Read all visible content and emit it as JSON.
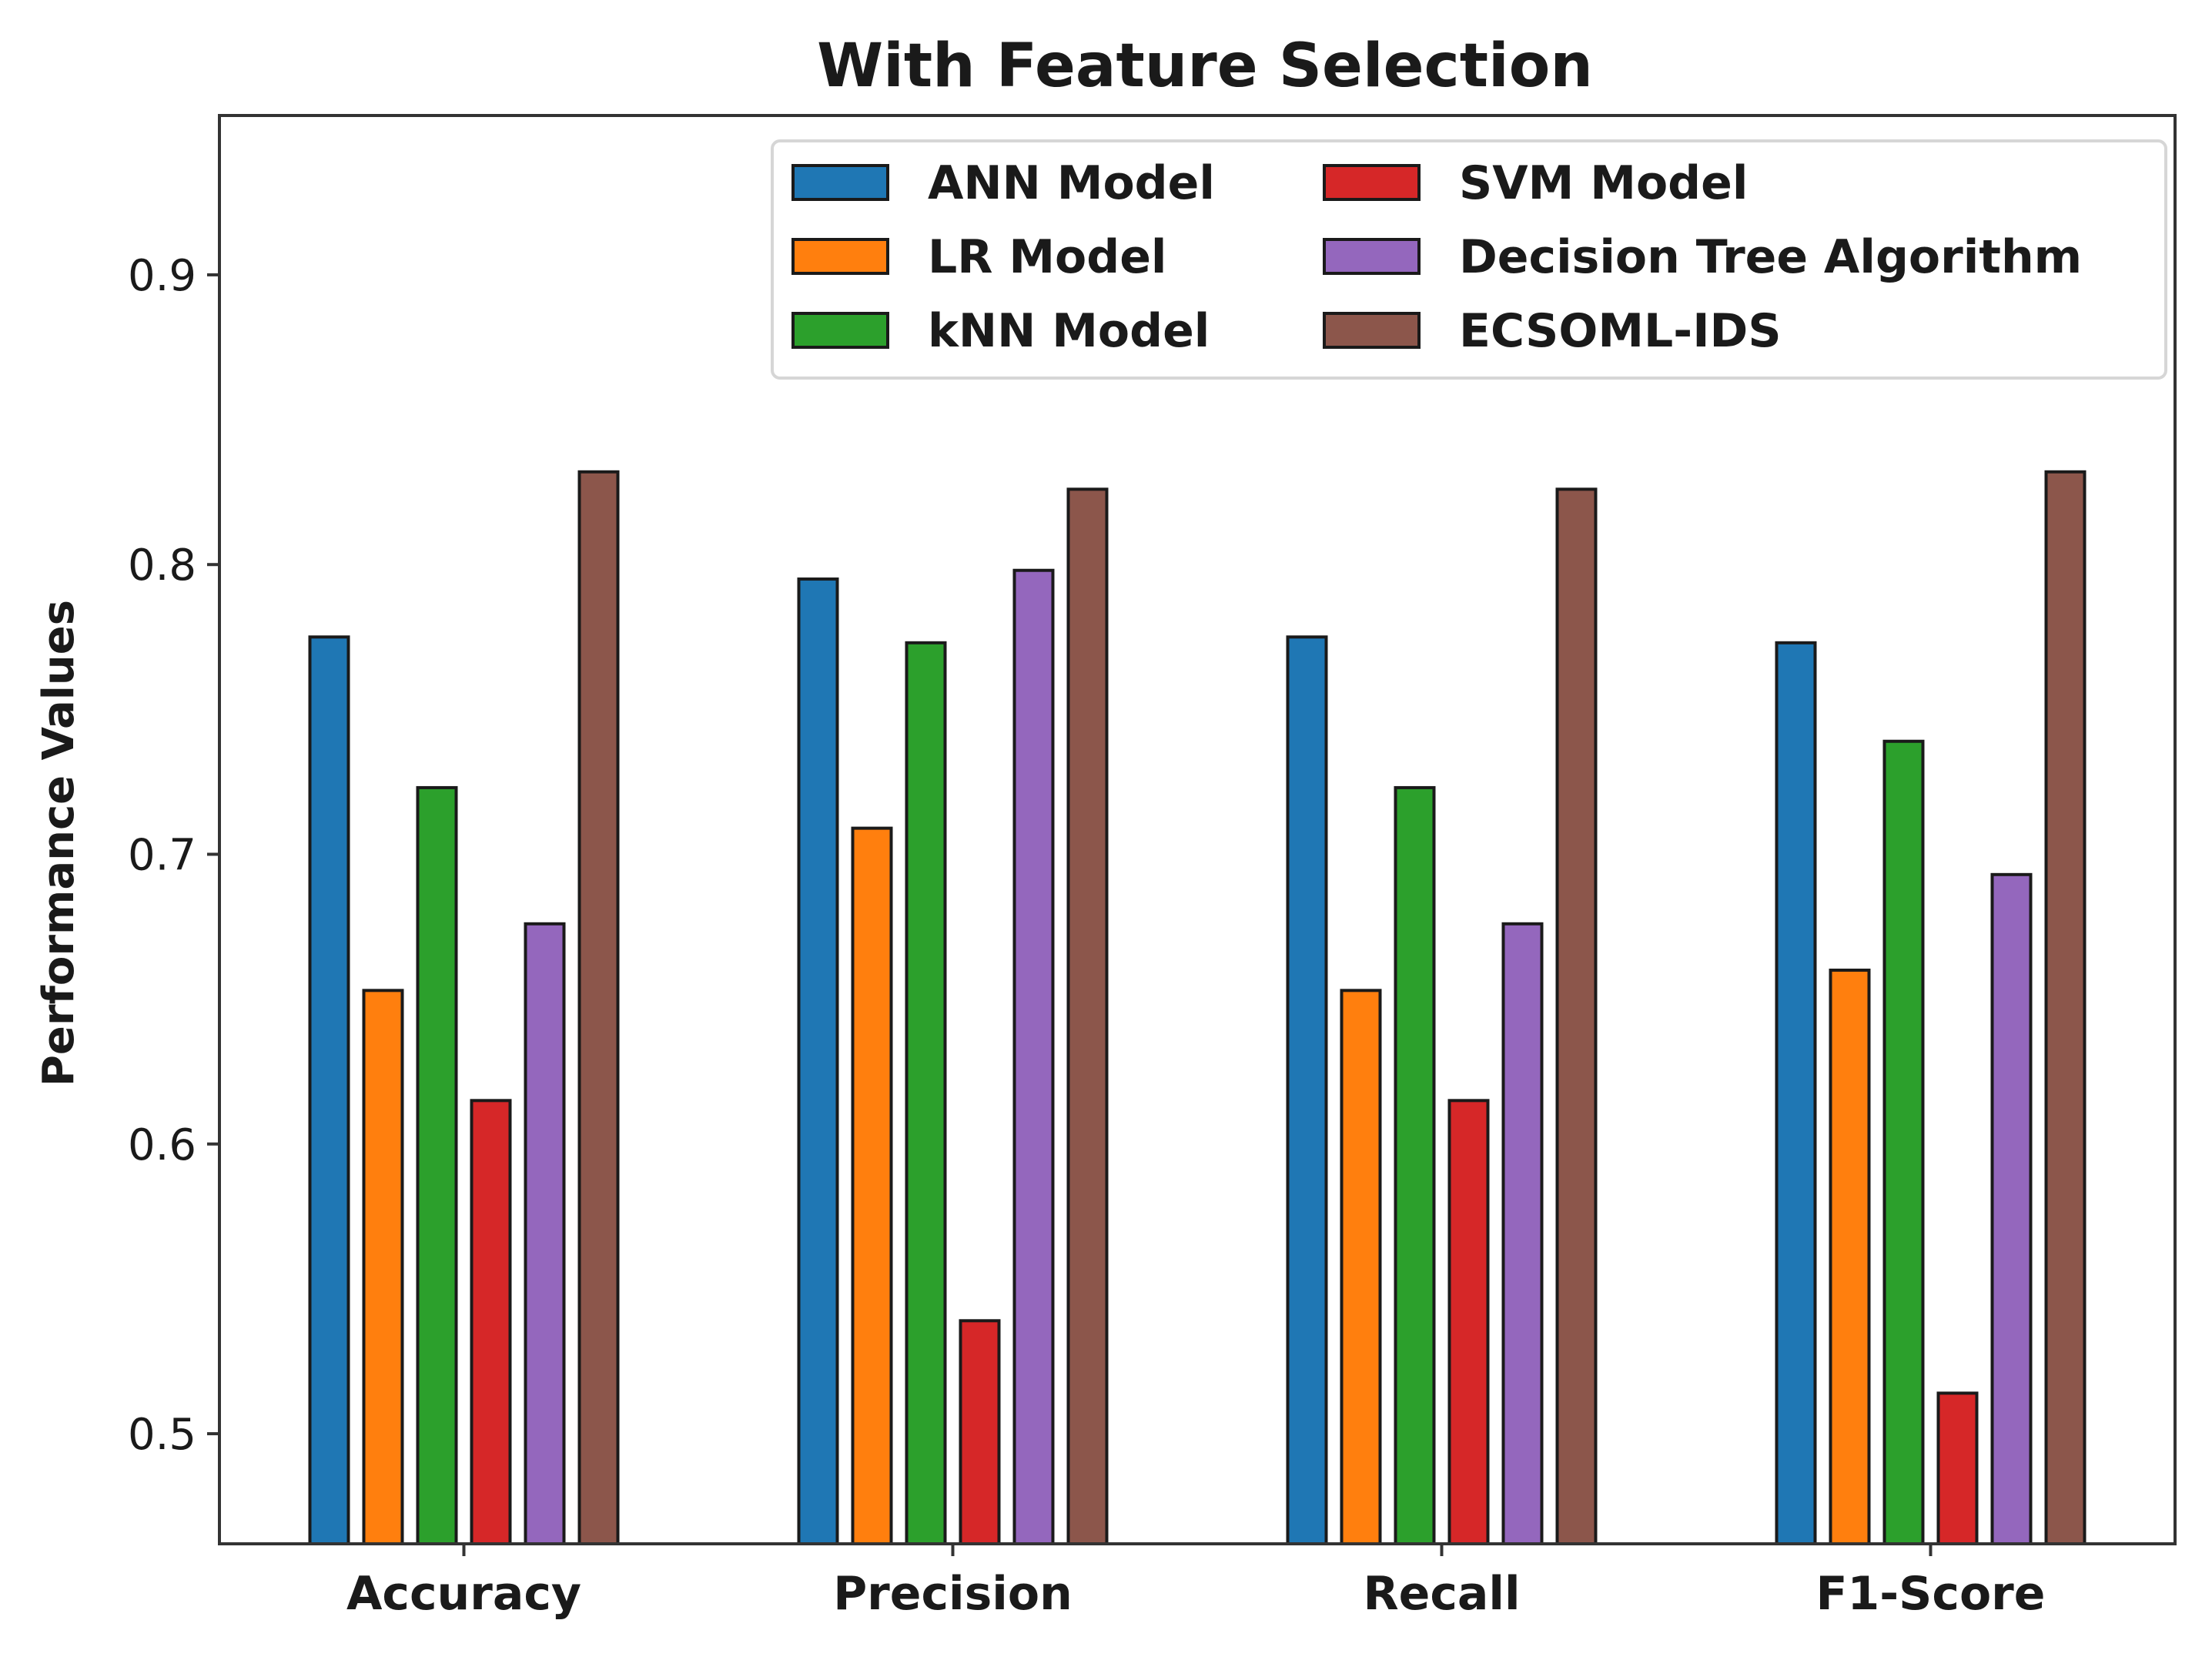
{
  "chart_data": {
    "type": "bar",
    "title": "With Feature Selection",
    "xlabel": "",
    "ylabel": "Performance Values",
    "ylim": [
      0.462,
      0.955
    ],
    "yticks": [
      0.5,
      0.6,
      0.7,
      0.8,
      0.9
    ],
    "ytick_labels": [
      "0.5",
      "0.6",
      "0.7",
      "0.8",
      "0.9"
    ],
    "grid": false,
    "legend_position": "upper-right",
    "categories": [
      "Accuracy",
      "Precision",
      "Recall",
      "F1-Score"
    ],
    "series": [
      {
        "name": "ANN Model",
        "color": "#1f77b4",
        "values": [
          0.775,
          0.795,
          0.775,
          0.773
        ]
      },
      {
        "name": "LR Model",
        "color": "#ff7f0e",
        "values": [
          0.653,
          0.709,
          0.653,
          0.66
        ]
      },
      {
        "name": "kNN Model",
        "color": "#2ca02c",
        "values": [
          0.723,
          0.773,
          0.723,
          0.739
        ]
      },
      {
        "name": "SVM Model",
        "color": "#d62728",
        "values": [
          0.615,
          0.539,
          0.615,
          0.514
        ]
      },
      {
        "name": "Decision Tree Algorithm",
        "color": "#9467bd",
        "values": [
          0.676,
          0.798,
          0.676,
          0.693
        ]
      },
      {
        "name": "ECSOML-IDS",
        "color": "#8c564b",
        "values": [
          0.832,
          0.826,
          0.826,
          0.832
        ]
      }
    ]
  }
}
